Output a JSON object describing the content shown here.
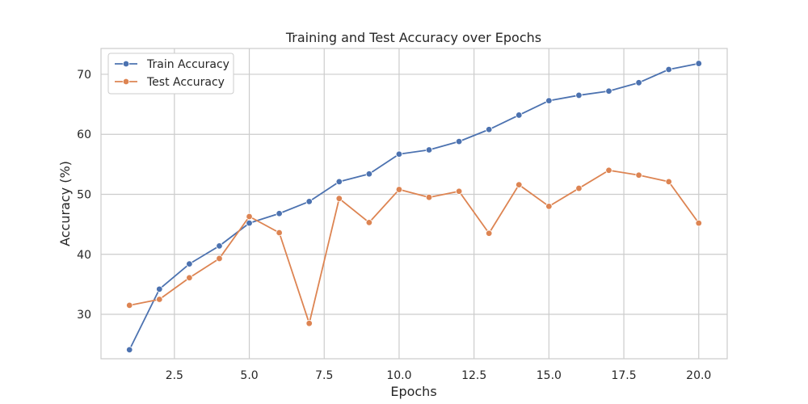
{
  "chart_data": {
    "type": "line",
    "title": "Training and Test Accuracy over Epochs",
    "xlabel": "Epochs",
    "ylabel": "Accuracy (%)",
    "xlim": [
      0.05,
      20.95
    ],
    "ylim": [
      22.6,
      74.3
    ],
    "xticks": [
      2.5,
      5.0,
      7.5,
      10.0,
      12.5,
      15.0,
      17.5,
      20.0
    ],
    "xtick_labels": [
      "2.5",
      "5.0",
      "7.5",
      "10.0",
      "12.5",
      "15.0",
      "17.5",
      "20.0"
    ],
    "yticks": [
      30,
      40,
      50,
      60,
      70
    ],
    "ytick_labels": [
      "30",
      "40",
      "50",
      "60",
      "70"
    ],
    "grid": true,
    "legend_position": "top-left",
    "x": [
      1,
      2,
      3,
      4,
      5,
      6,
      7,
      8,
      9,
      10,
      11,
      12,
      13,
      14,
      15,
      16,
      17,
      18,
      19,
      20
    ],
    "series": [
      {
        "name": "Train Accuracy",
        "color": "#4c72b0",
        "values": [
          24.1,
          34.2,
          38.4,
          41.4,
          45.2,
          46.8,
          48.8,
          52.1,
          53.4,
          56.7,
          57.4,
          58.8,
          60.8,
          63.2,
          65.6,
          66.5,
          67.2,
          68.6,
          70.8,
          71.8
        ]
      },
      {
        "name": "Test Accuracy",
        "color": "#dd8452",
        "values": [
          31.5,
          32.5,
          36.1,
          39.3,
          46.3,
          43.6,
          28.5,
          49.3,
          45.3,
          50.8,
          49.5,
          50.5,
          43.5,
          51.6,
          48.0,
          51.0,
          54.0,
          53.2,
          52.1,
          45.2
        ]
      }
    ]
  }
}
